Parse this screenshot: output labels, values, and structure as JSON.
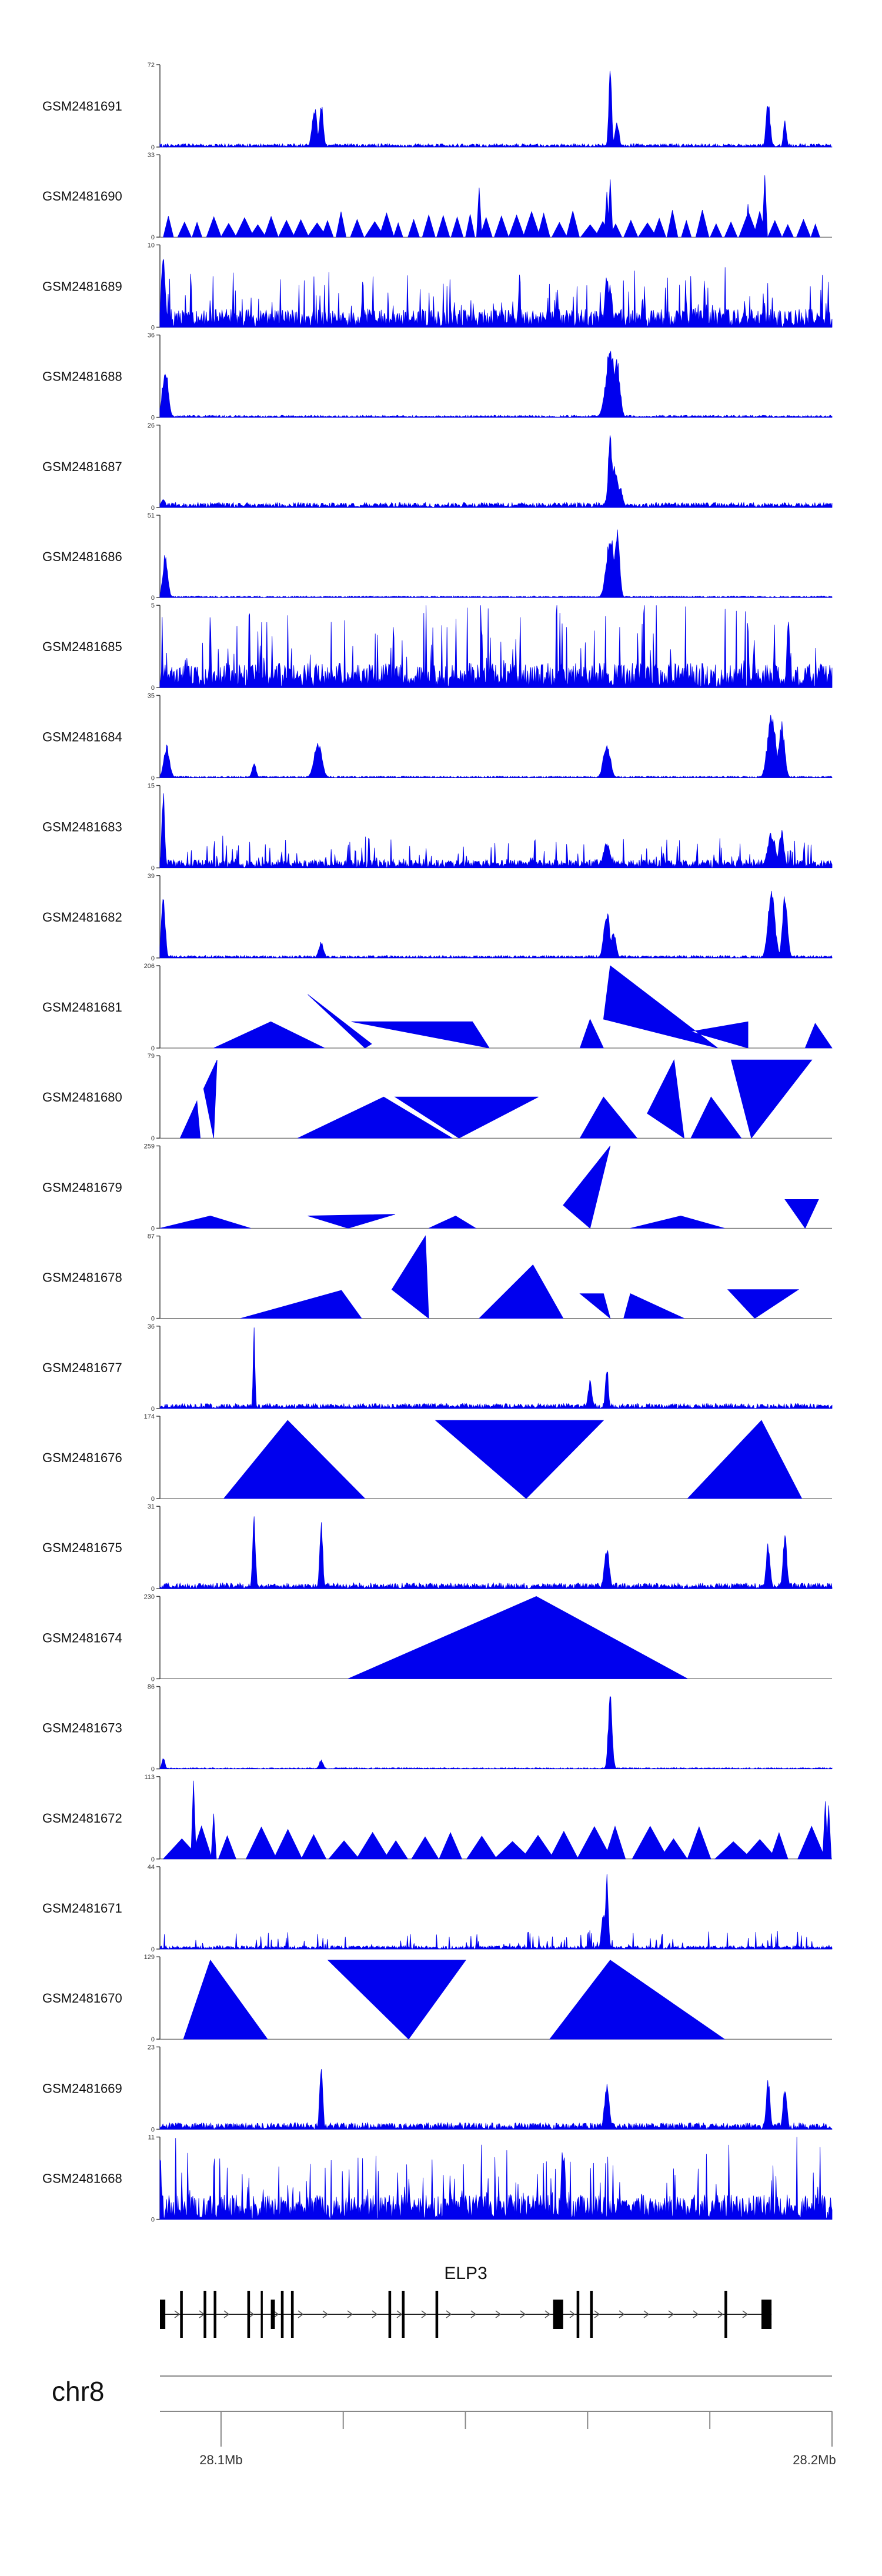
{
  "chart_data": {
    "type": "area",
    "title": "",
    "chromosome": "chr8",
    "region": {
      "start": 28.09,
      "end": 28.2,
      "unit": "Mb"
    },
    "track_color": "#0000ee",
    "baseline_color": "#444444",
    "tracks": [
      {
        "name": "GSM2481691",
        "ymax": 72,
        "ymin": 0,
        "style": "dense",
        "seed": 11,
        "noise": 0.04,
        "peaks": [
          [
            0.23,
            0.5,
            0.005
          ],
          [
            0.24,
            0.55,
            0.004
          ],
          [
            0.67,
            1.0,
            0.003
          ],
          [
            0.68,
            0.35,
            0.004
          ],
          [
            0.905,
            0.6,
            0.004
          ],
          [
            0.93,
            0.35,
            0.003
          ]
        ]
      },
      {
        "name": "GSM2481690",
        "ymax": 33,
        "ymin": 0,
        "style": "triangles",
        "seed": 12,
        "count": 46,
        "hmin": 0.15,
        "hmax": 0.35,
        "peaks": [
          [
            0.475,
            0.6,
            0.004
          ],
          [
            0.665,
            0.55,
            0.004
          ],
          [
            0.67,
            0.7,
            0.004
          ],
          [
            0.875,
            0.4,
            0.004
          ],
          [
            0.9,
            0.75,
            0.004
          ]
        ]
      },
      {
        "name": "GSM2481689",
        "ymax": 10,
        "ymin": 0,
        "style": "dense",
        "seed": 13,
        "noise": 0.22,
        "spiky": 0.55,
        "peaks": [
          [
            0.005,
            0.95,
            0.004
          ],
          [
            0.665,
            0.7,
            0.004
          ],
          [
            0.67,
            0.55,
            0.004
          ]
        ]
      },
      {
        "name": "GSM2481688",
        "ymax": 36,
        "ymin": 0,
        "style": "dense",
        "seed": 14,
        "noise": 0.025,
        "peaks": [
          [
            0.008,
            0.65,
            0.006
          ],
          [
            0.67,
            0.9,
            0.009
          ],
          [
            0.68,
            0.75,
            0.006
          ]
        ]
      },
      {
        "name": "GSM2481687",
        "ymax": 26,
        "ymin": 0,
        "style": "dense",
        "seed": 15,
        "noise": 0.06,
        "peaks": [
          [
            0.005,
            0.12,
            0.004
          ],
          [
            0.67,
            0.95,
            0.004
          ],
          [
            0.675,
            0.55,
            0.009
          ],
          [
            0.685,
            0.25,
            0.005
          ]
        ]
      },
      {
        "name": "GSM2481686",
        "ymax": 51,
        "ymin": 0,
        "style": "dense",
        "seed": 16,
        "noise": 0.02,
        "peaks": [
          [
            0.008,
            0.55,
            0.005
          ],
          [
            0.67,
            0.8,
            0.008
          ],
          [
            0.68,
            0.9,
            0.005
          ]
        ]
      },
      {
        "name": "GSM2481685",
        "ymax": 5,
        "ymin": 0,
        "style": "dense",
        "seed": 17,
        "noise": 0.3,
        "spiky": 0.85,
        "peaks": [
          [
            0.935,
            0.9,
            0.003
          ]
        ]
      },
      {
        "name": "GSM2481684",
        "ymax": 35,
        "ymin": 0,
        "style": "dense",
        "seed": 18,
        "noise": 0.02,
        "peaks": [
          [
            0.01,
            0.4,
            0.006
          ],
          [
            0.14,
            0.2,
            0.004
          ],
          [
            0.235,
            0.45,
            0.008
          ],
          [
            0.665,
            0.45,
            0.007
          ],
          [
            0.91,
            0.85,
            0.008
          ],
          [
            0.925,
            0.7,
            0.006
          ]
        ]
      },
      {
        "name": "GSM2481683",
        "ymax": 15,
        "ymin": 0,
        "style": "dense",
        "seed": 19,
        "noise": 0.1,
        "spiky": 0.3,
        "peaks": [
          [
            0.005,
            0.95,
            0.003
          ],
          [
            0.665,
            0.35,
            0.007
          ],
          [
            0.91,
            0.45,
            0.008
          ],
          [
            0.925,
            0.5,
            0.005
          ]
        ]
      },
      {
        "name": "GSM2481682",
        "ymax": 39,
        "ymin": 0,
        "style": "dense",
        "seed": 20,
        "noise": 0.03,
        "peaks": [
          [
            0.005,
            0.75,
            0.004
          ],
          [
            0.24,
            0.2,
            0.005
          ],
          [
            0.665,
            0.6,
            0.006
          ],
          [
            0.675,
            0.35,
            0.005
          ],
          [
            0.91,
            0.9,
            0.007
          ],
          [
            0.93,
            0.85,
            0.005
          ]
        ]
      },
      {
        "name": "GSM2481681",
        "ymax": 206,
        "ymin": 0,
        "style": "triangles",
        "points": [
          [
            0.08,
            0
          ],
          [
            0.165,
            0.32
          ],
          [
            0.245,
            0
          ],
          [
            0.22,
            0.65
          ],
          [
            0.305,
            0
          ],
          [
            0.315,
            0.05
          ],
          [
            0.285,
            0.32
          ],
          [
            0.49,
            0
          ],
          [
            0.465,
            0.32
          ],
          [
            0.625,
            0
          ],
          [
            0.64,
            0.35
          ],
          [
            0.66,
            0
          ],
          [
            0.66,
            0.35
          ],
          [
            0.67,
            1.0
          ],
          [
            0.83,
            0
          ],
          [
            0.79,
            0.2
          ],
          [
            0.875,
            0
          ],
          [
            0.875,
            0.32
          ],
          [
            0.96,
            0
          ],
          [
            0.975,
            0.3
          ],
          [
            1.0,
            0
          ]
        ]
      },
      {
        "name": "GSM2481680",
        "ymax": 79,
        "ymin": 0,
        "style": "triangles",
        "points": [
          [
            0.03,
            0
          ],
          [
            0.055,
            0.45
          ],
          [
            0.06,
            0
          ],
          [
            0.065,
            0.6
          ],
          [
            0.08,
            0
          ],
          [
            0.085,
            0.95
          ],
          [
            0.205,
            0
          ],
          [
            0.333,
            0.5
          ],
          [
            0.435,
            0
          ],
          [
            0.35,
            0.5
          ],
          [
            0.445,
            0
          ],
          [
            0.563,
            0.5
          ],
          [
            0.625,
            0
          ],
          [
            0.66,
            0.5
          ],
          [
            0.71,
            0
          ],
          [
            0.725,
            0.3
          ],
          [
            0.78,
            0
          ],
          [
            0.765,
            0.95
          ],
          [
            0.79,
            0
          ],
          [
            0.82,
            0.5
          ],
          [
            0.865,
            0
          ],
          [
            0.85,
            0.95
          ],
          [
            0.88,
            0
          ],
          [
            0.97,
            0.95
          ],
          [
            0.99,
            0
          ]
        ]
      },
      {
        "name": "GSM2481679",
        "ymax": 259,
        "ymin": 0,
        "style": "triangles",
        "points": [
          [
            0.0,
            0
          ],
          [
            0.075,
            0.15
          ],
          [
            0.135,
            0
          ],
          [
            0.22,
            0.15
          ],
          [
            0.28,
            0
          ],
          [
            0.35,
            0.17
          ],
          [
            0.4,
            0
          ],
          [
            0.44,
            0.15
          ],
          [
            0.47,
            0
          ],
          [
            0.6,
            0.28
          ],
          [
            0.64,
            0
          ],
          [
            0.67,
            1.0
          ],
          [
            0.7,
            0
          ],
          [
            0.775,
            0.15
          ],
          [
            0.84,
            0
          ],
          [
            0.93,
            0.35
          ],
          [
            0.96,
            0
          ],
          [
            0.98,
            0.35
          ],
          [
            0.995,
            0
          ]
        ]
      },
      {
        "name": "GSM2481678",
        "ymax": 87,
        "ymin": 0,
        "style": "triangles",
        "points": [
          [
            0.12,
            0
          ],
          [
            0.27,
            0.34
          ],
          [
            0.3,
            0
          ],
          [
            0.345,
            0.35
          ],
          [
            0.4,
            0
          ],
          [
            0.395,
            1.0
          ],
          [
            0.475,
            0
          ],
          [
            0.555,
            0.65
          ],
          [
            0.6,
            0
          ],
          [
            0.625,
            0.3
          ],
          [
            0.67,
            0
          ],
          [
            0.66,
            0.3
          ],
          [
            0.69,
            0
          ],
          [
            0.7,
            0.3
          ],
          [
            0.78,
            0
          ],
          [
            0.845,
            0.35
          ],
          [
            0.885,
            0
          ],
          [
            0.95,
            0.35
          ],
          [
            1.0,
            0
          ]
        ]
      },
      {
        "name": "GSM2481677",
        "ymax": 36,
        "ymin": 0,
        "style": "dense",
        "seed": 21,
        "noise": 0.06,
        "peaks": [
          [
            0.14,
            1.0,
            0.002
          ],
          [
            0.665,
            0.55,
            0.003
          ],
          [
            0.64,
            0.35,
            0.004
          ]
        ]
      },
      {
        "name": "GSM2481676",
        "ymax": 174,
        "ymin": 0,
        "style": "triangles",
        "points": [
          [
            0.095,
            0
          ],
          [
            0.19,
            0.95
          ],
          [
            0.305,
            0
          ],
          [
            0.41,
            0.95
          ],
          [
            0.545,
            0
          ],
          [
            0.66,
            0.95
          ],
          [
            0.785,
            0
          ],
          [
            0.895,
            0.95
          ],
          [
            0.955,
            0
          ]
        ]
      },
      {
        "name": "GSM2481675",
        "ymax": 31,
        "ymin": 0,
        "style": "dense",
        "seed": 22,
        "noise": 0.07,
        "peaks": [
          [
            0.14,
            0.9,
            0.003
          ],
          [
            0.24,
            0.95,
            0.003
          ],
          [
            0.665,
            0.55,
            0.005
          ],
          [
            0.905,
            0.6,
            0.004
          ],
          [
            0.93,
            0.7,
            0.004
          ]
        ]
      },
      {
        "name": "GSM2481674",
        "ymax": 230,
        "ymin": 0,
        "style": "triangles",
        "points": [
          [
            0.28,
            0
          ],
          [
            0.56,
            1.0
          ],
          [
            0.785,
            0
          ]
        ]
      },
      {
        "name": "GSM2481673",
        "ymax": 86,
        "ymin": 0,
        "style": "dense",
        "seed": 23,
        "noise": 0.015,
        "peaks": [
          [
            0.005,
            0.15,
            0.003
          ],
          [
            0.24,
            0.12,
            0.004
          ],
          [
            0.67,
            0.95,
            0.004
          ]
        ]
      },
      {
        "name": "GSM2481672",
        "ymax": 113,
        "ymin": 0,
        "style": "triangles",
        "seed": 24,
        "count": 24,
        "hmin": 0.2,
        "hmax": 0.4,
        "peaks": [
          [
            0.05,
            0.95,
            0.004
          ],
          [
            0.08,
            0.55,
            0.004
          ],
          [
            0.99,
            0.7,
            0.004
          ],
          [
            0.995,
            0.65,
            0.004
          ]
        ]
      },
      {
        "name": "GSM2481671",
        "ymax": 44,
        "ymin": 0,
        "style": "dense",
        "seed": 25,
        "noise": 0.04,
        "spiky": 0.2,
        "peaks": [
          [
            0.665,
            0.95,
            0.003
          ],
          [
            0.66,
            0.5,
            0.004
          ]
        ]
      },
      {
        "name": "GSM2481670",
        "ymax": 129,
        "ymin": 0,
        "style": "triangles",
        "points": [
          [
            0.035,
            0
          ],
          [
            0.075,
            0.96
          ],
          [
            0.16,
            0
          ],
          [
            0.25,
            0.96
          ],
          [
            0.37,
            0
          ],
          [
            0.455,
            0.96
          ],
          [
            0.58,
            0
          ],
          [
            0.67,
            0.96
          ],
          [
            0.84,
            0
          ]
        ]
      },
      {
        "name": "GSM2481669",
        "ymax": 23,
        "ymin": 0,
        "style": "dense",
        "seed": 26,
        "noise": 0.08,
        "peaks": [
          [
            0.24,
            0.95,
            0.003
          ],
          [
            0.665,
            0.55,
            0.005
          ],
          [
            0.905,
            0.65,
            0.004
          ],
          [
            0.93,
            0.55,
            0.004
          ]
        ]
      },
      {
        "name": "GSM2481668",
        "ymax": 11,
        "ymin": 0,
        "style": "dense",
        "seed": 27,
        "noise": 0.3,
        "spiky": 0.75,
        "peaks": [
          [
            0.6,
            0.95,
            0.004
          ],
          [
            0.0,
            0.9,
            0.003
          ]
        ]
      }
    ],
    "gene": {
      "name": "ELP3",
      "start": 0.0,
      "end": 0.91,
      "strand": "+",
      "exons": [
        [
          0.0,
          0.008
        ],
        [
          0.03,
          0.034
        ],
        [
          0.065,
          0.069
        ],
        [
          0.08,
          0.084
        ],
        [
          0.13,
          0.134
        ],
        [
          0.15,
          0.153
        ],
        [
          0.165,
          0.171
        ],
        [
          0.18,
          0.184
        ],
        [
          0.195,
          0.199
        ],
        [
          0.34,
          0.344
        ],
        [
          0.36,
          0.364
        ],
        [
          0.41,
          0.414
        ],
        [
          0.585,
          0.6
        ],
        [
          0.62,
          0.624
        ],
        [
          0.64,
          0.644
        ],
        [
          0.84,
          0.844
        ],
        [
          0.895,
          0.91
        ]
      ]
    },
    "axis": {
      "ticks": [
        28.1,
        28.12,
        28.14,
        28.16,
        28.18,
        28.2
      ],
      "labeled_ticks": [
        {
          "value": 28.1,
          "label": "28.1Mb"
        },
        {
          "value": 28.2,
          "label": "28.2Mb"
        }
      ]
    }
  }
}
